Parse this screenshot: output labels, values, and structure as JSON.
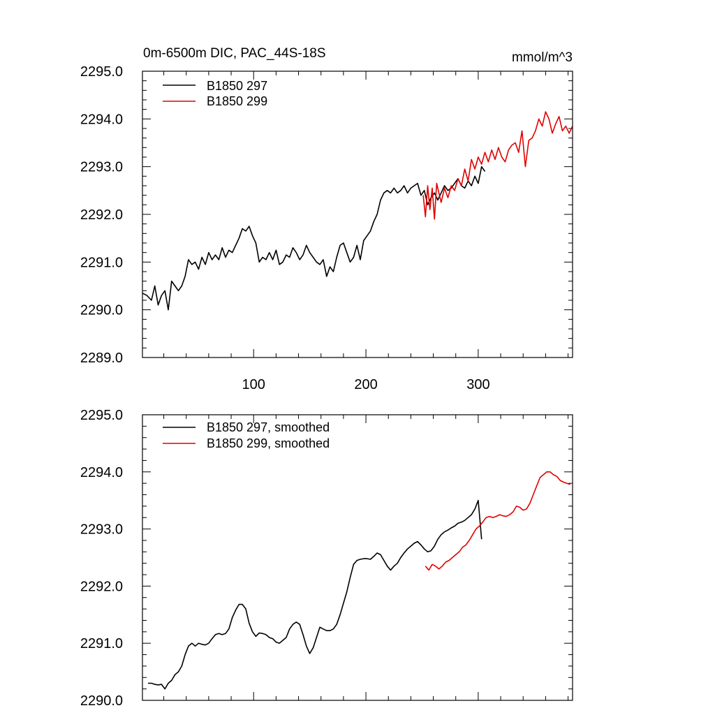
{
  "colors": {
    "series_297": "#000000",
    "series_299": "#e00000",
    "axis": "#000000"
  },
  "chart_data": [
    {
      "type": "line",
      "title": "0m-6500m DIC, PAC_44S-18S",
      "units": "mmol/m^3",
      "xlabel": "",
      "ylabel": "",
      "xlim": [
        1,
        384
      ],
      "ylim": [
        2289.0,
        2295.0
      ],
      "xticks": [
        100,
        200,
        300
      ],
      "xtick_labels": [
        "100",
        "200",
        "300"
      ],
      "yticks": [
        2289.0,
        2290.0,
        2291.0,
        2292.0,
        2293.0,
        2294.0,
        2295.0
      ],
      "ytick_labels": [
        "2289.0",
        "2290.0",
        "2291.0",
        "2292.0",
        "2293.0",
        "2294.0",
        "2295.0"
      ],
      "legend_position": "top-left",
      "series": [
        {
          "name": "B1850 297",
          "color": "#000000",
          "x": [
            1,
            5,
            9,
            12,
            15,
            18,
            21,
            24,
            27,
            30,
            33,
            36,
            39,
            42,
            45,
            48,
            51,
            54,
            57,
            60,
            63,
            66,
            69,
            72,
            75,
            78,
            81,
            84,
            87,
            90,
            93,
            96,
            99,
            102,
            105,
            108,
            111,
            114,
            117,
            120,
            123,
            126,
            129,
            132,
            135,
            138,
            141,
            144,
            147,
            150,
            153,
            156,
            159,
            162,
            165,
            168,
            171,
            174,
            177,
            180,
            183,
            186,
            189,
            192,
            195,
            198,
            201,
            204,
            207,
            210,
            213,
            216,
            219,
            222,
            225,
            228,
            231,
            234,
            237,
            240,
            243,
            246,
            249,
            252,
            255,
            258,
            261,
            264,
            267,
            270,
            273,
            276,
            279,
            282,
            285,
            288,
            291,
            294,
            297,
            300,
            303,
            306
          ],
          "y": [
            2290.35,
            2290.3,
            2290.2,
            2290.5,
            2290.1,
            2290.3,
            2290.4,
            2290.0,
            2290.6,
            2290.5,
            2290.4,
            2290.5,
            2290.7,
            2291.05,
            2290.95,
            2291.0,
            2290.85,
            2291.1,
            2290.95,
            2291.2,
            2291.05,
            2291.15,
            2291.05,
            2291.3,
            2291.1,
            2291.25,
            2291.2,
            2291.35,
            2291.5,
            2291.7,
            2291.65,
            2291.75,
            2291.55,
            2291.4,
            2291.0,
            2291.1,
            2291.05,
            2291.2,
            2291.05,
            2291.25,
            2290.95,
            2291.0,
            2291.15,
            2291.1,
            2291.3,
            2291.2,
            2291.05,
            2291.15,
            2291.35,
            2291.2,
            2291.1,
            2291.0,
            2290.95,
            2291.05,
            2290.7,
            2290.9,
            2290.8,
            2291.1,
            2291.35,
            2291.4,
            2291.2,
            2291.0,
            2291.1,
            2291.35,
            2291.05,
            2291.45,
            2291.55,
            2291.65,
            2291.85,
            2292.0,
            2292.3,
            2292.45,
            2292.5,
            2292.45,
            2292.55,
            2292.45,
            2292.5,
            2292.6,
            2292.45,
            2292.55,
            2292.6,
            2292.65,
            2292.4,
            2292.5,
            2292.2,
            2292.35,
            2292.45,
            2292.3,
            2292.45,
            2292.6,
            2292.5,
            2292.55,
            2292.65,
            2292.75,
            2292.6,
            2292.55,
            2292.7,
            2292.6,
            2292.8,
            2292.65,
            2293.0,
            2292.9
          ]
        },
        {
          "name": "B1850 299",
          "color": "#e00000",
          "x": [
            251,
            253,
            255,
            257,
            259,
            261,
            263,
            265,
            267,
            270,
            273,
            276,
            279,
            282,
            285,
            288,
            291,
            294,
            297,
            300,
            303,
            306,
            309,
            312,
            315,
            318,
            321,
            324,
            327,
            330,
            333,
            336,
            339,
            342,
            345,
            348,
            351,
            354,
            357,
            360,
            363,
            366,
            369,
            372,
            375,
            378,
            381,
            384
          ],
          "y": [
            2292.4,
            2291.95,
            2292.6,
            2292.1,
            2292.55,
            2291.9,
            2292.65,
            2292.45,
            2292.25,
            2292.55,
            2292.35,
            2292.6,
            2292.5,
            2292.75,
            2292.6,
            2292.95,
            2292.7,
            2293.15,
            2292.95,
            2293.2,
            2293.05,
            2293.3,
            2293.1,
            2293.35,
            2293.15,
            2293.4,
            2293.2,
            2293.1,
            2293.35,
            2293.45,
            2293.5,
            2293.3,
            2293.75,
            2293.0,
            2293.55,
            2293.6,
            2293.75,
            2294.0,
            2293.85,
            2294.15,
            2294.0,
            2293.7,
            2293.9,
            2294.05,
            2293.75,
            2293.85,
            2293.7,
            2293.85
          ]
        }
      ]
    },
    {
      "type": "line",
      "title": "",
      "xlabel": "",
      "ylabel": "",
      "xlim": [
        1,
        384
      ],
      "ylim": [
        2290.0,
        2295.0
      ],
      "xticks": [
        100,
        200,
        300
      ],
      "xtick_labels": [],
      "yticks": [
        2290.0,
        2291.0,
        2292.0,
        2293.0,
        2294.0,
        2295.0
      ],
      "ytick_labels": [
        "2290.0",
        "2291.0",
        "2292.0",
        "2293.0",
        "2294.0",
        "2295.0"
      ],
      "legend_position": "top-left",
      "series": [
        {
          "name": "B1850 297, smoothed",
          "color": "#000000",
          "x": [
            6,
            9,
            12,
            15,
            18,
            21,
            24,
            27,
            30,
            33,
            36,
            39,
            42,
            45,
            48,
            51,
            54,
            57,
            60,
            63,
            66,
            69,
            72,
            75,
            78,
            81,
            84,
            87,
            90,
            93,
            96,
            99,
            102,
            105,
            108,
            111,
            114,
            117,
            120,
            123,
            126,
            129,
            132,
            135,
            138,
            141,
            144,
            147,
            150,
            153,
            156,
            159,
            162,
            165,
            168,
            171,
            174,
            177,
            180,
            183,
            186,
            189,
            192,
            195,
            198,
            201,
            204,
            207,
            210,
            213,
            216,
            219,
            222,
            225,
            228,
            231,
            234,
            237,
            240,
            243,
            246,
            249,
            252,
            255,
            258,
            261,
            264,
            267,
            270,
            273,
            276,
            279,
            282,
            285,
            288,
            291,
            294,
            297,
            300,
            303
          ],
          "y": [
            2290.3,
            2290.3,
            2290.28,
            2290.27,
            2290.28,
            2290.2,
            2290.3,
            2290.35,
            2290.45,
            2290.5,
            2290.6,
            2290.8,
            2290.95,
            2291.0,
            2290.95,
            2291.0,
            2290.98,
            2290.97,
            2291.0,
            2291.08,
            2291.15,
            2291.17,
            2291.15,
            2291.17,
            2291.25,
            2291.45,
            2291.58,
            2291.68,
            2291.68,
            2291.6,
            2291.35,
            2291.2,
            2291.12,
            2291.18,
            2291.17,
            2291.15,
            2291.1,
            2291.08,
            2291.02,
            2291.0,
            2291.05,
            2291.1,
            2291.25,
            2291.33,
            2291.37,
            2291.33,
            2291.15,
            2290.95,
            2290.82,
            2290.92,
            2291.1,
            2291.28,
            2291.25,
            2291.22,
            2291.22,
            2291.25,
            2291.33,
            2291.5,
            2291.7,
            2291.9,
            2292.15,
            2292.38,
            2292.45,
            2292.47,
            2292.48,
            2292.48,
            2292.47,
            2292.52,
            2292.58,
            2292.55,
            2292.45,
            2292.35,
            2292.28,
            2292.35,
            2292.4,
            2292.5,
            2292.58,
            2292.65,
            2292.7,
            2292.75,
            2292.78,
            2292.72,
            2292.65,
            2292.6,
            2292.62,
            2292.7,
            2292.82,
            2292.9,
            2292.95,
            2292.98,
            2293.02,
            2293.05,
            2293.1,
            2293.12,
            2293.15,
            2293.2,
            2293.25,
            2293.35,
            2293.5,
            2292.82
          ]
        },
        {
          "name": "B1850 299, smoothed",
          "color": "#e00000",
          "x": [
            253,
            256,
            259,
            262,
            265,
            268,
            271,
            274,
            277,
            280,
            283,
            286,
            289,
            292,
            295,
            298,
            301,
            304,
            307,
            310,
            313,
            316,
            319,
            322,
            325,
            328,
            331,
            334,
            337,
            340,
            343,
            346,
            349,
            352,
            355,
            358,
            361,
            364,
            367,
            370,
            373,
            376,
            379,
            382
          ],
          "y": [
            2292.35,
            2292.28,
            2292.38,
            2292.35,
            2292.3,
            2292.35,
            2292.42,
            2292.45,
            2292.5,
            2292.55,
            2292.6,
            2292.68,
            2292.72,
            2292.8,
            2292.9,
            2293.0,
            2293.05,
            2293.12,
            2293.2,
            2293.22,
            2293.2,
            2293.22,
            2293.25,
            2293.23,
            2293.22,
            2293.25,
            2293.3,
            2293.4,
            2293.38,
            2293.33,
            2293.35,
            2293.45,
            2293.6,
            2293.75,
            2293.9,
            2293.95,
            2294.0,
            2294.0,
            2293.95,
            2293.92,
            2293.85,
            2293.82,
            2293.8,
            2293.78
          ]
        }
      ]
    }
  ]
}
